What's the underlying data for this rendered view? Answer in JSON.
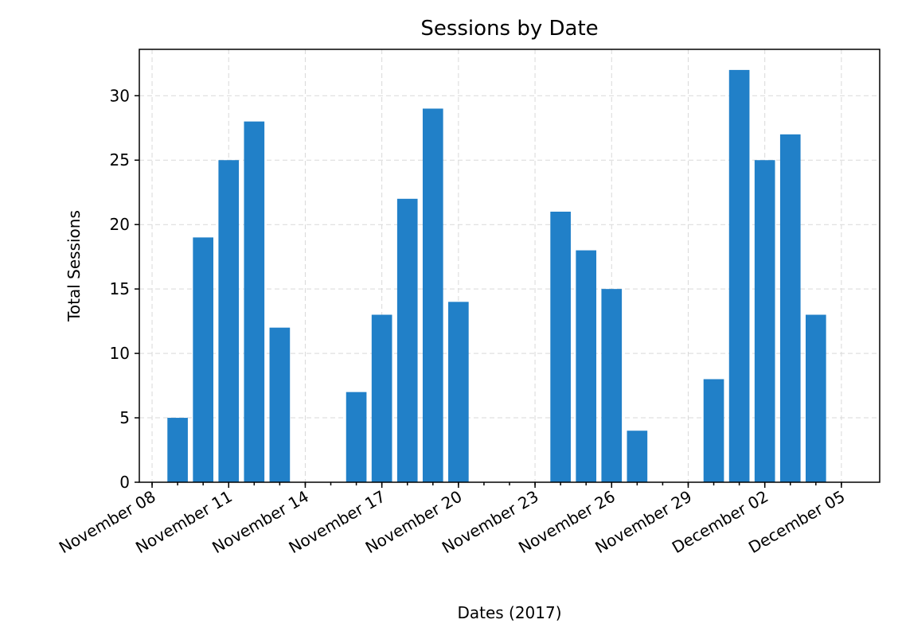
{
  "chart_data": {
    "type": "bar",
    "title": "Sessions by Date",
    "xlabel": "Dates (2017)",
    "ylabel": "Total Sessions",
    "ylim": [
      0,
      33.6
    ],
    "xlim": [
      "2017-11-07T12:00",
      "2017-12-06T12:00"
    ],
    "grid": true,
    "bar_color": "#2180c8",
    "x": [
      "2017-11-09",
      "2017-11-10",
      "2017-11-11",
      "2017-11-12",
      "2017-11-13",
      "2017-11-16",
      "2017-11-17",
      "2017-11-18",
      "2017-11-19",
      "2017-11-20",
      "2017-11-24",
      "2017-11-25",
      "2017-11-26",
      "2017-11-27",
      "2017-11-30",
      "2017-12-01",
      "2017-12-02",
      "2017-12-03",
      "2017-12-04"
    ],
    "values": [
      5,
      19,
      25,
      28,
      12,
      7,
      13,
      22,
      29,
      14,
      21,
      18,
      15,
      4,
      8,
      32,
      25,
      27,
      13
    ],
    "y_ticks": [
      0,
      5,
      10,
      15,
      20,
      25,
      30
    ],
    "x_major_ticks": [
      {
        "date": "2017-11-08",
        "label": "November 08"
      },
      {
        "date": "2017-11-11",
        "label": "November 11"
      },
      {
        "date": "2017-11-14",
        "label": "November 14"
      },
      {
        "date": "2017-11-17",
        "label": "November 17"
      },
      {
        "date": "2017-11-20",
        "label": "November 20"
      },
      {
        "date": "2017-11-23",
        "label": "November 23"
      },
      {
        "date": "2017-11-26",
        "label": "November 26"
      },
      {
        "date": "2017-11-29",
        "label": "November 29"
      },
      {
        "date": "2017-12-02",
        "label": "December 02"
      },
      {
        "date": "2017-12-05",
        "label": "December 05"
      }
    ]
  }
}
